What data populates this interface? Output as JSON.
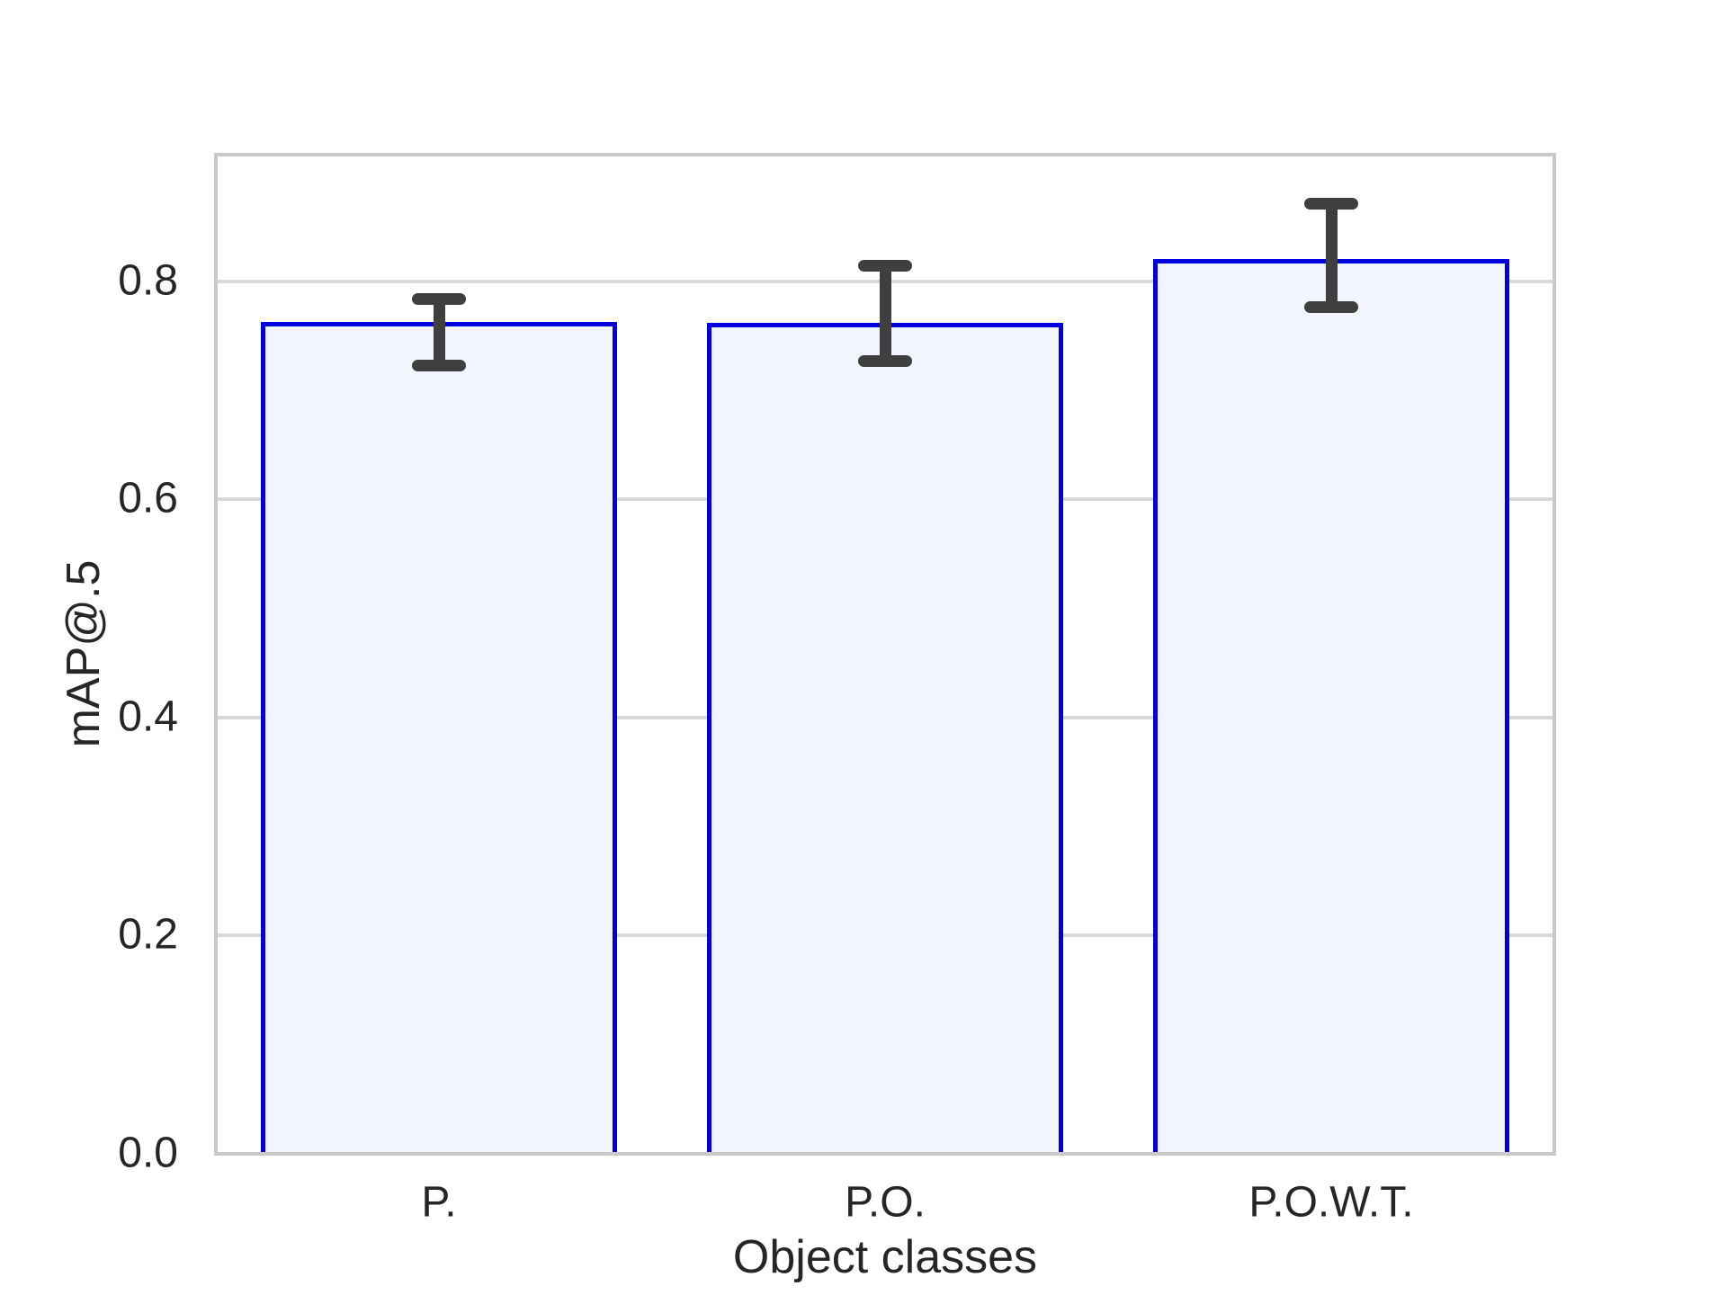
{
  "chart_data": {
    "type": "bar",
    "title": "",
    "xlabel": "Object classes",
    "ylabel": "mAP@.5",
    "categories": [
      "P.",
      "P.O.",
      "P.O.W.T."
    ],
    "values": [
      0.763,
      0.762,
      0.82
    ],
    "error_low": [
      0.723,
      0.727,
      0.776
    ],
    "error_high": [
      0.784,
      0.814,
      0.871
    ],
    "ylim": [
      0,
      0.916
    ],
    "yticks": [
      0.0,
      0.2,
      0.4,
      0.6,
      0.8
    ],
    "ytick_labels": [
      "0.0",
      "0.2",
      "0.4",
      "0.6",
      "0.8"
    ],
    "grid": "horizontal-only",
    "legend": "none",
    "bar_width_fraction": 0.8,
    "colors": {
      "bar_fill": "#f2f5fd",
      "bar_edge": "#0101dd",
      "error_bar": "#3f3f3f",
      "gridline": "#d9d9d9",
      "spine": "#c9c9c9",
      "text": "#262626",
      "background": "#ffffff"
    }
  }
}
